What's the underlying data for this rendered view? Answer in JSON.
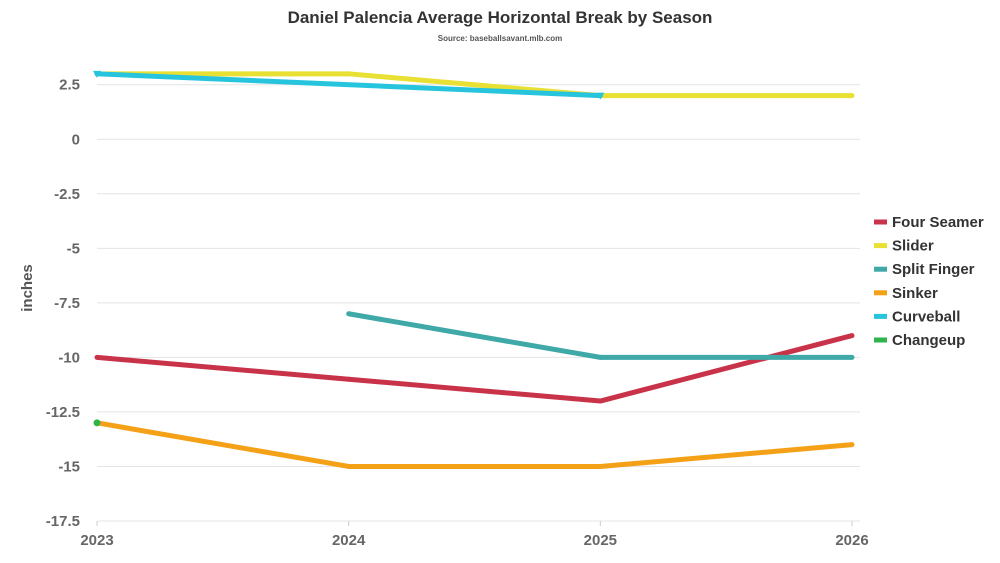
{
  "chart_data": {
    "type": "line",
    "title": "Daniel Palencia Average Horizontal Break by Season",
    "subtitle": "Source: baseballsavant.mlb.com",
    "xlabel": "",
    "ylabel": "inches",
    "x": [
      "2023",
      "2024",
      "2025",
      "2026"
    ],
    "yticks": [
      2.5,
      0,
      -2.5,
      -5,
      -7.5,
      -10,
      -12.5,
      -15,
      -17.5
    ],
    "ylim": [
      -17.5,
      4
    ],
    "grid": true,
    "legend_position": "right",
    "series": [
      {
        "name": "Four Seamer",
        "color": "#c8334a",
        "values": [
          -10,
          -11,
          -12,
          -9
        ]
      },
      {
        "name": "Slider",
        "color": "#e8e032",
        "values": [
          3,
          3,
          2,
          2
        ]
      },
      {
        "name": "Split Finger",
        "color": "#3fa9a8",
        "values": [
          null,
          -8,
          -10,
          -10
        ]
      },
      {
        "name": "Sinker",
        "color": "#f4a118",
        "values": [
          -13,
          -15,
          -15,
          -14
        ]
      },
      {
        "name": "Curveball",
        "color": "#27c4de",
        "values": [
          3,
          null,
          2,
          null
        ]
      },
      {
        "name": "Changeup",
        "color": "#2fb34a",
        "values": [
          -13,
          null,
          null,
          null
        ]
      }
    ]
  }
}
